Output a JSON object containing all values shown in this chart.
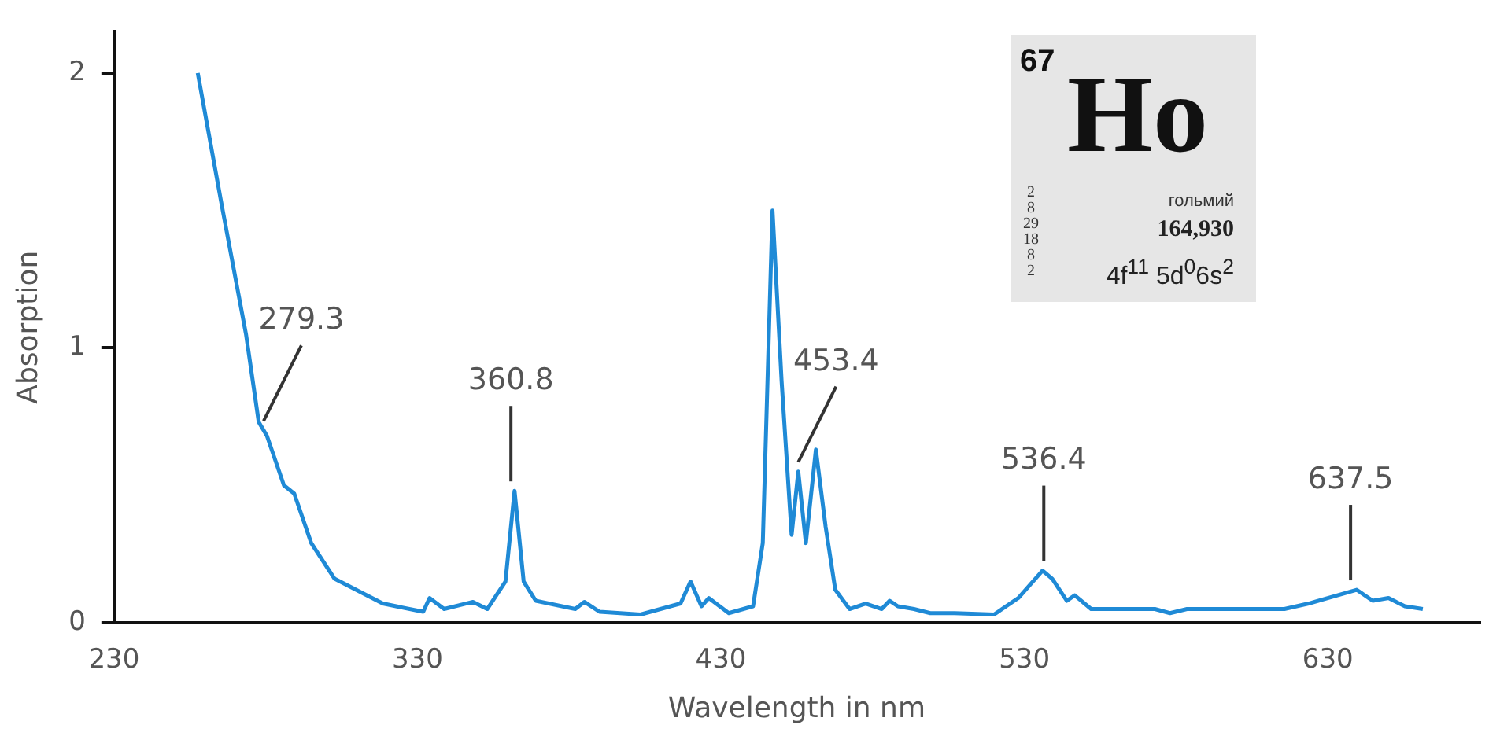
{
  "chart_data": {
    "type": "line",
    "xlabel": "Wavelength in nm",
    "ylabel": "Absorption",
    "xlim": [
      230,
      680
    ],
    "xticks": [
      230,
      330,
      430,
      530,
      630
    ],
    "ylim": [
      0,
      2.15
    ],
    "yticks": [
      0,
      1,
      2
    ],
    "grid": false,
    "legend": false,
    "marker": "none",
    "line_style": "solid",
    "series": [
      {
        "color": "#1f8ad6",
        "x": [
          257.6,
          265.5,
          273.5,
          277.7,
          280.4,
          286,
          289.4,
          295,
          302.7,
          318.6,
          331.9,
          334,
          338.8,
          348.3,
          353,
          359,
          362,
          365,
          369,
          382,
          385,
          390,
          403.5,
          416.7,
          420,
          423.6,
          426,
          432.6,
          440.6,
          443.8,
          447,
          450,
          453.3,
          455.5,
          458,
          461.3,
          464.5,
          467.7,
          472.4,
          477.7,
          483,
          485.6,
          488.3,
          493.6,
          499,
          507,
          520,
          528,
          536,
          539.2,
          544,
          546.6,
          552,
          573,
          578,
          583.6,
          615.7,
          623.7,
          639.5,
          644.8,
          650,
          655.4,
          661.3
        ],
        "values": [
          2.0,
          1.52,
          1.05,
          0.73,
          0.68,
          0.5,
          0.47,
          0.29,
          0.16,
          0.07,
          0.04,
          0.09,
          0.05,
          0.076,
          0.05,
          0.15,
          0.48,
          0.15,
          0.08,
          0.05,
          0.076,
          0.04,
          0.03,
          0.07,
          0.15,
          0.06,
          0.09,
          0.035,
          0.06,
          0.29,
          1.5,
          0.88,
          0.32,
          0.55,
          0.29,
          0.63,
          0.35,
          0.12,
          0.05,
          0.07,
          0.05,
          0.08,
          0.06,
          0.05,
          0.035,
          0.035,
          0.03,
          0.09,
          0.19,
          0.16,
          0.08,
          0.1,
          0.05,
          0.05,
          0.035,
          0.05,
          0.05,
          0.07,
          0.12,
          0.08,
          0.09,
          0.06,
          0.05
        ]
      }
    ],
    "annotations": [
      {
        "text": "279.3",
        "x": 279.3,
        "y": 0.7
      },
      {
        "text": "360.8",
        "x": 360.8,
        "y": 0.48
      },
      {
        "text": "453.4",
        "x": 455.5,
        "y": 0.55
      },
      {
        "text": "536.4",
        "x": 536.4,
        "y": 0.19
      },
      {
        "text": "637.5",
        "x": 637.5,
        "y": 0.12
      },
      "67",
      "Ho",
      "2\n8\n29\n18\n8\n2",
      "гольмий",
      "164,930",
      "4f$^{11}$ 5d$^{0}$6s$^{2}$"
    ]
  }
}
